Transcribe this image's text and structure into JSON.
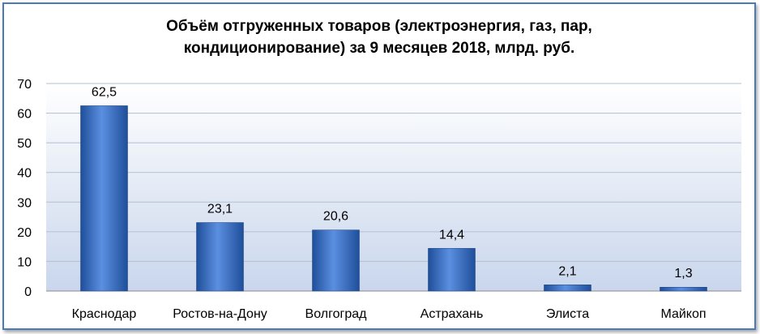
{
  "chart_data": {
    "type": "bar",
    "title_line1": "Объём отгруженных товаров (электроэнергия, газ, пар,",
    "title_line2": "кондиционирование) за 9 месяцев 2018, млрд. руб.",
    "categories": [
      "Краснодар",
      "Ростов-на-Дону",
      "Волгоград",
      "Астрахань",
      "Элиста",
      "Майкоп"
    ],
    "values": [
      62.5,
      23.1,
      20.6,
      14.4,
      2.1,
      1.3
    ],
    "data_labels": [
      "62,5",
      "23,1",
      "20,6",
      "14,4",
      "2,1",
      "1,3"
    ],
    "y_ticks": [
      "0",
      "10",
      "20",
      "30",
      "40",
      "50",
      "60",
      "70"
    ],
    "ylim": [
      0,
      70
    ],
    "grid": true,
    "legend": "none",
    "colors": {
      "bar": "#3a6fc4",
      "bar_dark": "#1f4f9a",
      "plot_bg_top": "#ffffff",
      "plot_bg_bottom": "#c9d6ec",
      "frame": "#4a7ab8"
    }
  }
}
